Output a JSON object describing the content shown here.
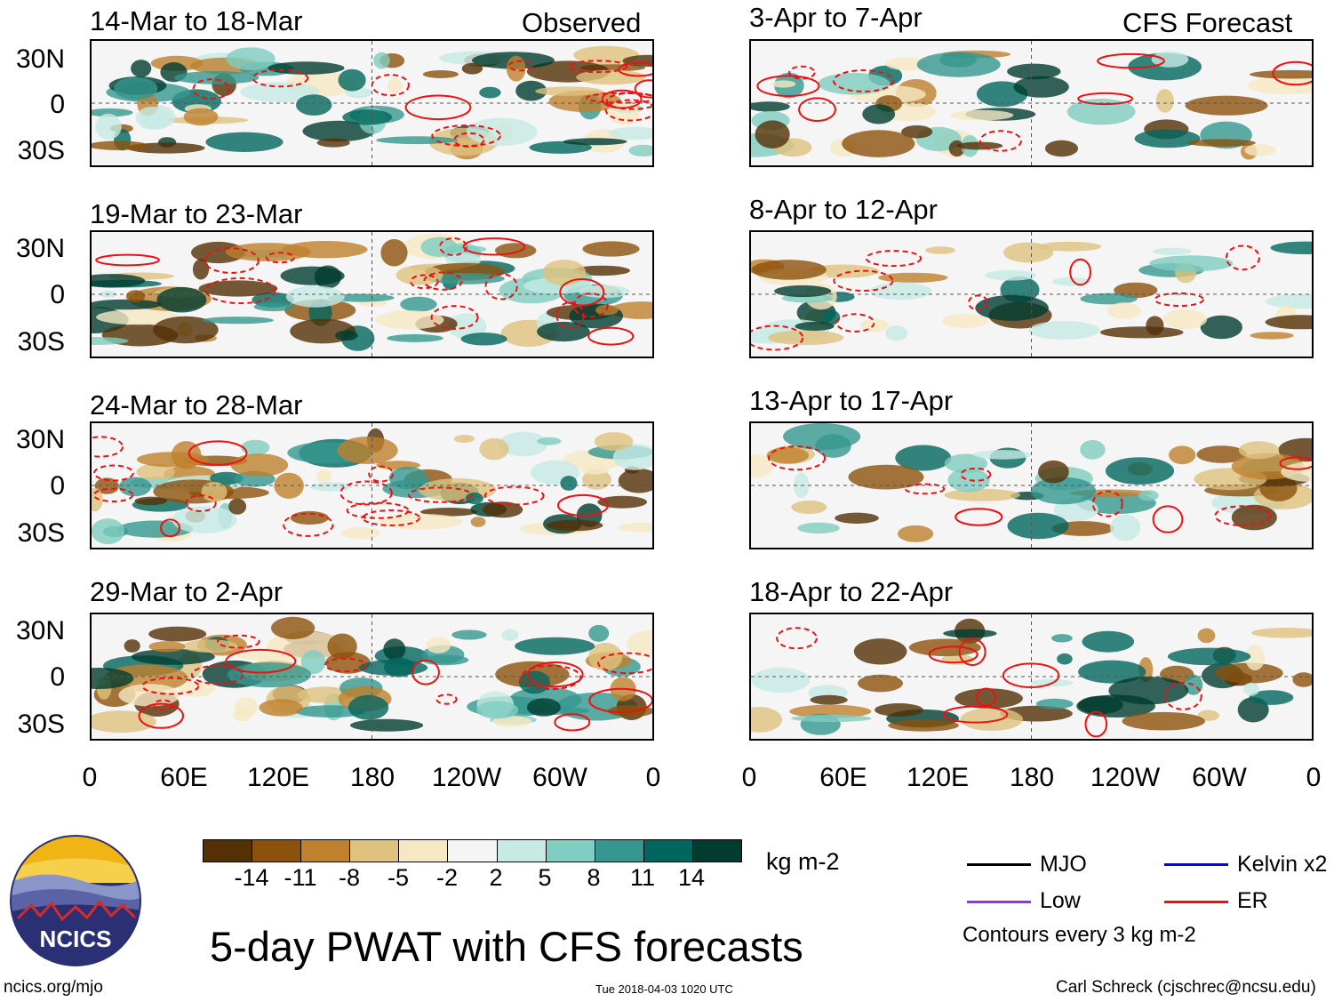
{
  "left_header": "Observed",
  "right_header": "CFS Forecast",
  "chart_data": {
    "type": "heatmap",
    "title": "5-day PWAT with CFS forecasts",
    "variable_units": "kg m-2",
    "lat_ticks": [
      "30N",
      "0",
      "30S"
    ],
    "lon_ticks": [
      "0",
      "60E",
      "120E",
      "180",
      "120W",
      "60W",
      "0"
    ],
    "panels": [
      {
        "period": "14-Mar to 18-Mar",
        "source": "Observed"
      },
      {
        "period": "19-Mar to 23-Mar",
        "source": "Observed"
      },
      {
        "period": "24-Mar to 28-Mar",
        "source": "Observed"
      },
      {
        "period": "29-Mar to 2-Apr",
        "source": "Observed"
      },
      {
        "period": "3-Apr to 7-Apr",
        "source": "CFS Forecast"
      },
      {
        "period": "8-Apr to 12-Apr",
        "source": "CFS Forecast"
      },
      {
        "period": "13-Apr to 17-Apr",
        "source": "CFS Forecast"
      },
      {
        "period": "18-Apr to 22-Apr",
        "source": "CFS Forecast"
      }
    ],
    "colorbar": {
      "ticks": [
        "-14",
        "-11",
        "-8",
        "-5",
        "-2",
        "2",
        "5",
        "8",
        "11",
        "14"
      ],
      "colors": [
        "#543005",
        "#8c510a",
        "#bf812d",
        "#dfc27d",
        "#f6e8c3",
        "#f5f5f5",
        "#c7eae5",
        "#80cdc1",
        "#35978f",
        "#01665e",
        "#003c30"
      ]
    },
    "legend": [
      {
        "label": "MJO",
        "color": "#000000"
      },
      {
        "label": "Kelvin x2",
        "color": "#0000ff"
      },
      {
        "label": "Low",
        "color": "#9933dd"
      },
      {
        "label": "ER",
        "color": "#ee1111"
      }
    ],
    "contour_note": "Contours every 3 kg m-2"
  },
  "footer": {
    "logo_text": "NCICS",
    "url": "ncics.org/mjo",
    "timestamp": "Tue 2018-04-03 1020 UTC",
    "author": "Carl Schreck (cjschrec@ncsu.edu)"
  }
}
